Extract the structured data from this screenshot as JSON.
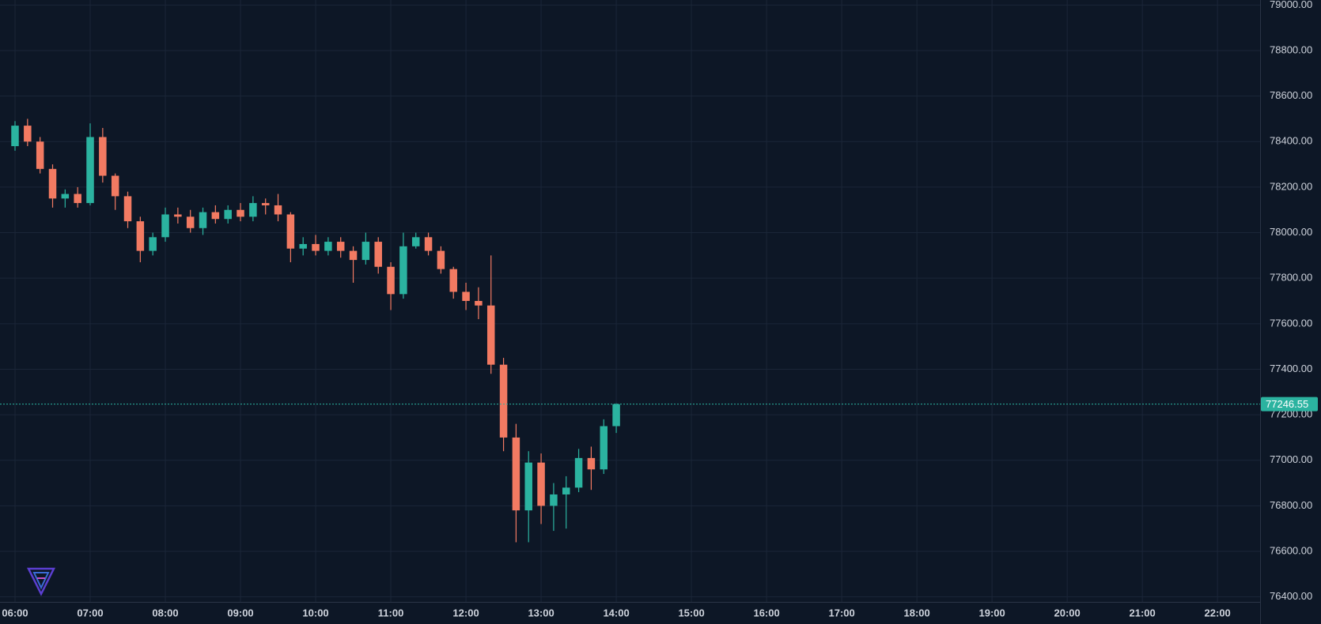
{
  "chart_data": {
    "type": "candlestick",
    "x": [
      "06:00",
      "06:10",
      "06:20",
      "06:30",
      "06:40",
      "06:50",
      "07:00",
      "07:10",
      "07:20",
      "07:30",
      "07:40",
      "07:50",
      "08:00",
      "08:10",
      "08:20",
      "08:30",
      "08:40",
      "08:50",
      "09:00",
      "09:10",
      "09:20",
      "09:30",
      "09:40",
      "09:50",
      "10:00",
      "10:10",
      "10:20",
      "10:30",
      "10:40",
      "10:50",
      "11:00",
      "11:10",
      "11:20",
      "11:30",
      "11:40",
      "11:50",
      "12:00",
      "12:10",
      "12:20",
      "12:30",
      "12:40",
      "12:50",
      "13:00",
      "13:10",
      "13:20",
      "13:30",
      "13:40",
      "13:50",
      "14:00"
    ],
    "open": [
      78380,
      78470,
      78400,
      78280,
      78150,
      78170,
      78130,
      78420,
      78250,
      78160,
      78050,
      77920,
      77980,
      78080,
      78070,
      78020,
      78090,
      78060,
      78100,
      78070,
      78130,
      78120,
      78080,
      77930,
      77950,
      77920,
      77960,
      77920,
      77880,
      77960,
      77850,
      77730,
      77940,
      77980,
      77920,
      77840,
      77740,
      77700,
      77680,
      77420,
      77100,
      76780,
      76990,
      76800,
      76850,
      76880,
      77010,
      76960,
      77150
    ],
    "high": [
      78490,
      78500,
      78420,
      78300,
      78190,
      78200,
      78480,
      78460,
      78260,
      78180,
      78070,
      78000,
      78110,
      78110,
      78100,
      78110,
      78120,
      78120,
      78130,
      78160,
      78150,
      78170,
      78090,
      77980,
      77990,
      77980,
      77980,
      77940,
      78000,
      77980,
      77870,
      78000,
      78000,
      78000,
      77940,
      77850,
      77780,
      77760,
      77900,
      77450,
      77160,
      77040,
      77030,
      76900,
      76930,
      77050,
      77060,
      77180,
      77250
    ],
    "low": [
      78360,
      78380,
      78260,
      78110,
      78110,
      78110,
      78120,
      78220,
      78100,
      78020,
      77870,
      77900,
      77960,
      78040,
      78000,
      77990,
      78040,
      78040,
      78050,
      78050,
      78080,
      78050,
      77870,
      77900,
      77900,
      77900,
      77890,
      77780,
      77860,
      77820,
      77660,
      77710,
      77930,
      77900,
      77820,
      77710,
      77660,
      77620,
      77380,
      77040,
      76640,
      76640,
      76720,
      76690,
      76700,
      76860,
      76870,
      76940,
      77120
    ],
    "close": [
      78470,
      78400,
      78280,
      78150,
      78170,
      78130,
      78420,
      78250,
      78160,
      78050,
      77920,
      77980,
      78080,
      78070,
      78020,
      78090,
      78060,
      78100,
      78070,
      78130,
      78120,
      78080,
      77930,
      77950,
      77920,
      77960,
      77920,
      77880,
      77960,
      77850,
      77730,
      77940,
      77980,
      77920,
      77840,
      77740,
      77700,
      77680,
      77420,
      77100,
      76780,
      76990,
      76800,
      76850,
      76880,
      77010,
      76960,
      77150,
      77246.55
    ],
    "up_color": "#2bb3a0",
    "down_color": "#f27a62",
    "last_price": 77246.55,
    "xlim": [
      "05:48",
      "22:34"
    ],
    "xticks": [
      "06:00",
      "07:00",
      "08:00",
      "09:00",
      "10:00",
      "11:00",
      "12:00",
      "13:00",
      "14:00",
      "15:00",
      "16:00",
      "17:00",
      "18:00",
      "19:00",
      "20:00",
      "21:00",
      "22:00"
    ],
    "ylim": [
      76378,
      79022
    ],
    "yticks": [
      {
        "value": 79000,
        "label": "79000.00"
      },
      {
        "value": 78800,
        "label": "78800.00"
      },
      {
        "value": 78600,
        "label": "78600.00"
      },
      {
        "value": 78400,
        "label": "78400.00"
      },
      {
        "value": 78200,
        "label": "78200.00"
      },
      {
        "value": 78000,
        "label": "78000.00"
      },
      {
        "value": 77800,
        "label": "77800.00"
      },
      {
        "value": 77600,
        "label": "77600.00"
      },
      {
        "value": 77400,
        "label": "77400.00"
      },
      {
        "value": 77200,
        "label": "77200.00"
      },
      {
        "value": 77000,
        "label": "77000.00"
      },
      {
        "value": 76800,
        "label": "76800.00"
      },
      {
        "value": 76600,
        "label": "76600.00"
      },
      {
        "value": 76400,
        "label": "76400.00"
      }
    ],
    "grid": true
  }
}
